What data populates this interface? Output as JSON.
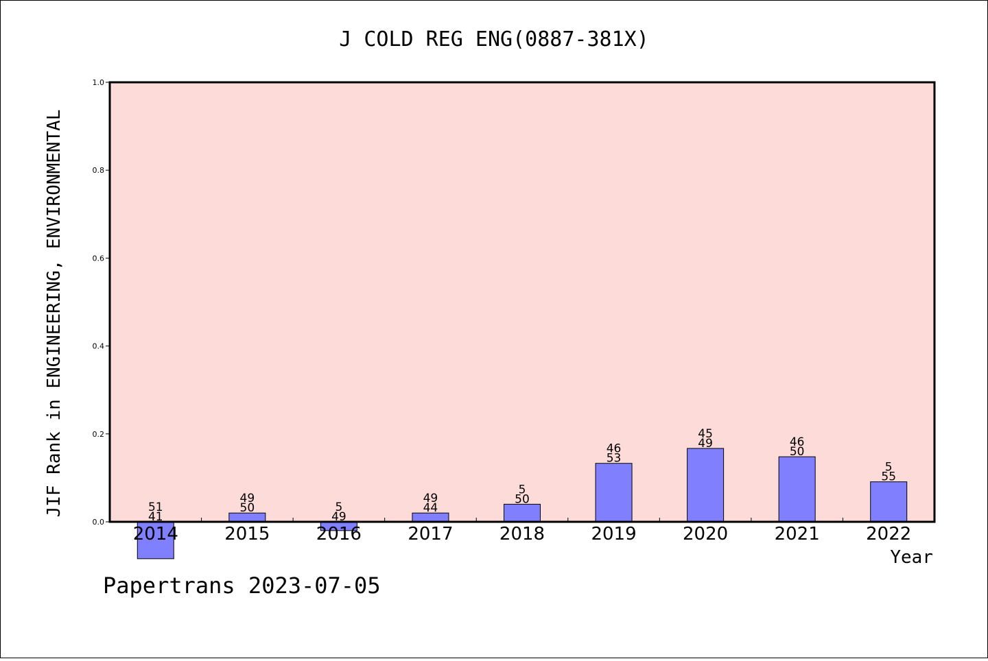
{
  "chart_data": {
    "type": "bar",
    "title": "J COLD REG ENG(0887-381X)",
    "xlabel": "Year",
    "ylabel": "JIF Rank in ENGINEERING, ENVIRONMENTAL",
    "ylim": [
      0,
      1.0
    ],
    "yticks": [
      "0.0",
      "0.2",
      "0.4",
      "0.6",
      "0.8",
      "1.0"
    ],
    "grid": false,
    "legend": "none",
    "categories": [
      "2014",
      "2015",
      "2016",
      "2017",
      "2018",
      "2019",
      "2020",
      "2021",
      "2022"
    ],
    "values": [
      -0.084,
      0.02,
      -0.02,
      0.02,
      0.04,
      0.133,
      0.167,
      0.148,
      0.091
    ],
    "labels_top": [
      "51",
      "49",
      "5",
      "49",
      "5",
      "46",
      "45",
      "46",
      "5"
    ],
    "labels_bottom": [
      "41",
      "50",
      "49",
      "44",
      "50",
      "53",
      "49",
      "50",
      "55"
    ],
    "colors": {
      "bar": "#8080ff",
      "plot_bg": "#fddbd8"
    }
  },
  "footer": "Papertrans 2023-07-05"
}
